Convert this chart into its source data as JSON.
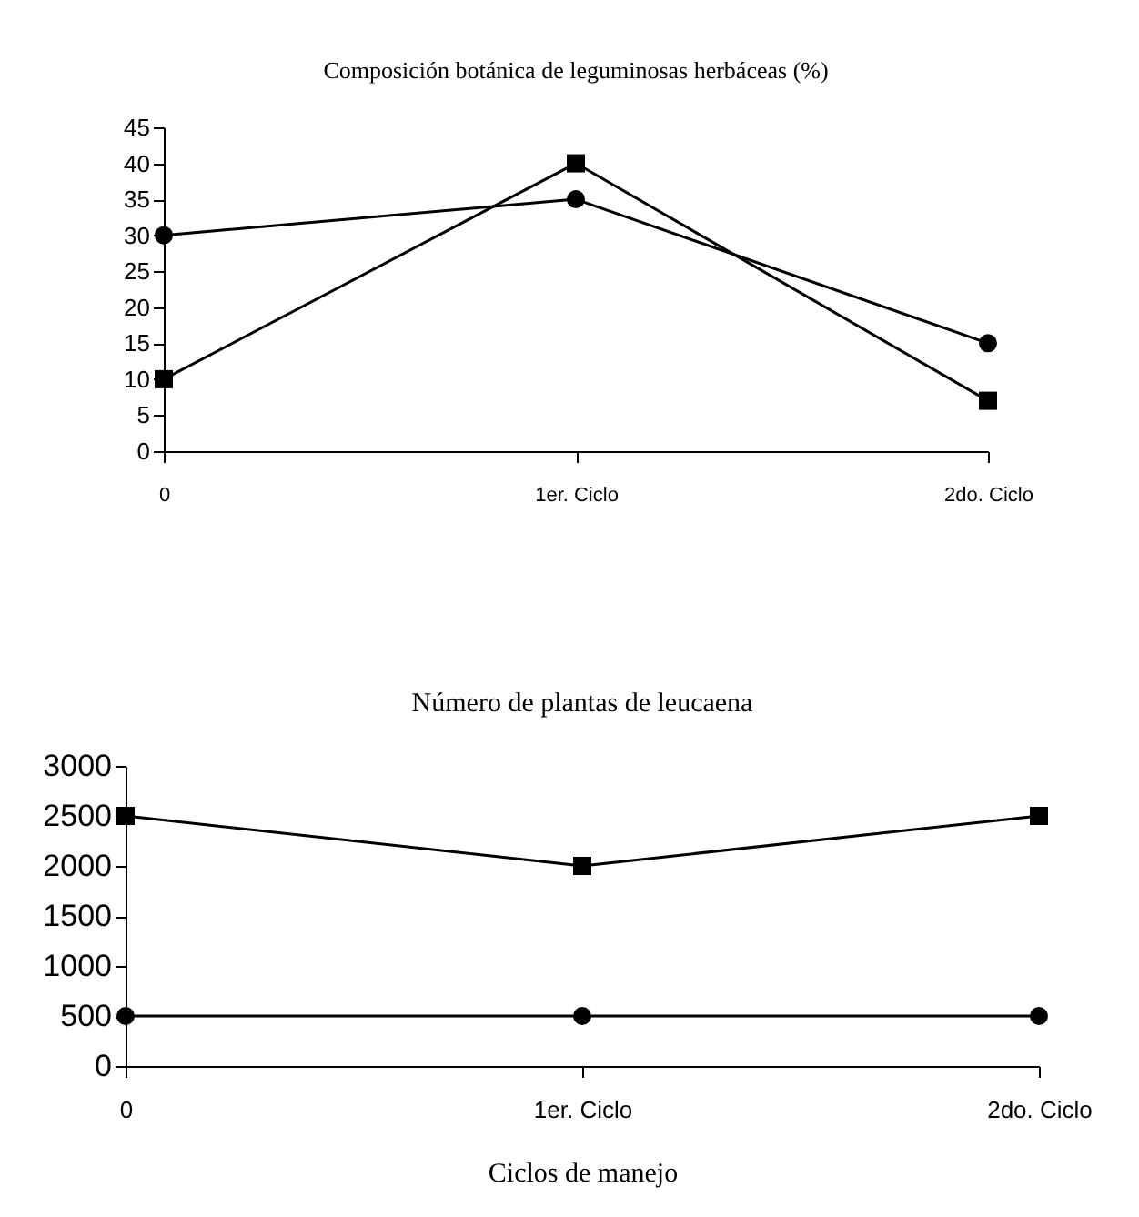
{
  "chart_data": [
    {
      "type": "line",
      "title": "Composición botánica de leguminosas herbáceas (%)",
      "categories": [
        "0",
        "1er. Ciclo",
        "2do. Ciclo"
      ],
      "ylim": [
        0,
        45
      ],
      "yticks": [
        0,
        5,
        10,
        15,
        20,
        25,
        30,
        35,
        40,
        45
      ],
      "grid": false,
      "legend": false,
      "series": [
        {
          "color": "#000000",
          "marker": "circle",
          "values": [
            30,
            35,
            15
          ]
        },
        {
          "color": "#000000",
          "marker": "square",
          "values": [
            10,
            40,
            7
          ]
        }
      ]
    },
    {
      "type": "line",
      "title": "Número de plantas de leucaena",
      "xlabel": "Ciclos de manejo",
      "categories": [
        "0",
        "1er. Ciclo",
        "2do. Ciclo"
      ],
      "ylim": [
        0,
        3000
      ],
      "yticks": [
        0,
        500,
        1000,
        1500,
        2000,
        2500,
        3000
      ],
      "grid": false,
      "legend": false,
      "series": [
        {
          "color": "#000000",
          "marker": "square",
          "values": [
            2500,
            2000,
            2500
          ]
        },
        {
          "color": "#000000",
          "marker": "circle",
          "values": [
            500,
            500,
            500
          ]
        }
      ]
    }
  ]
}
